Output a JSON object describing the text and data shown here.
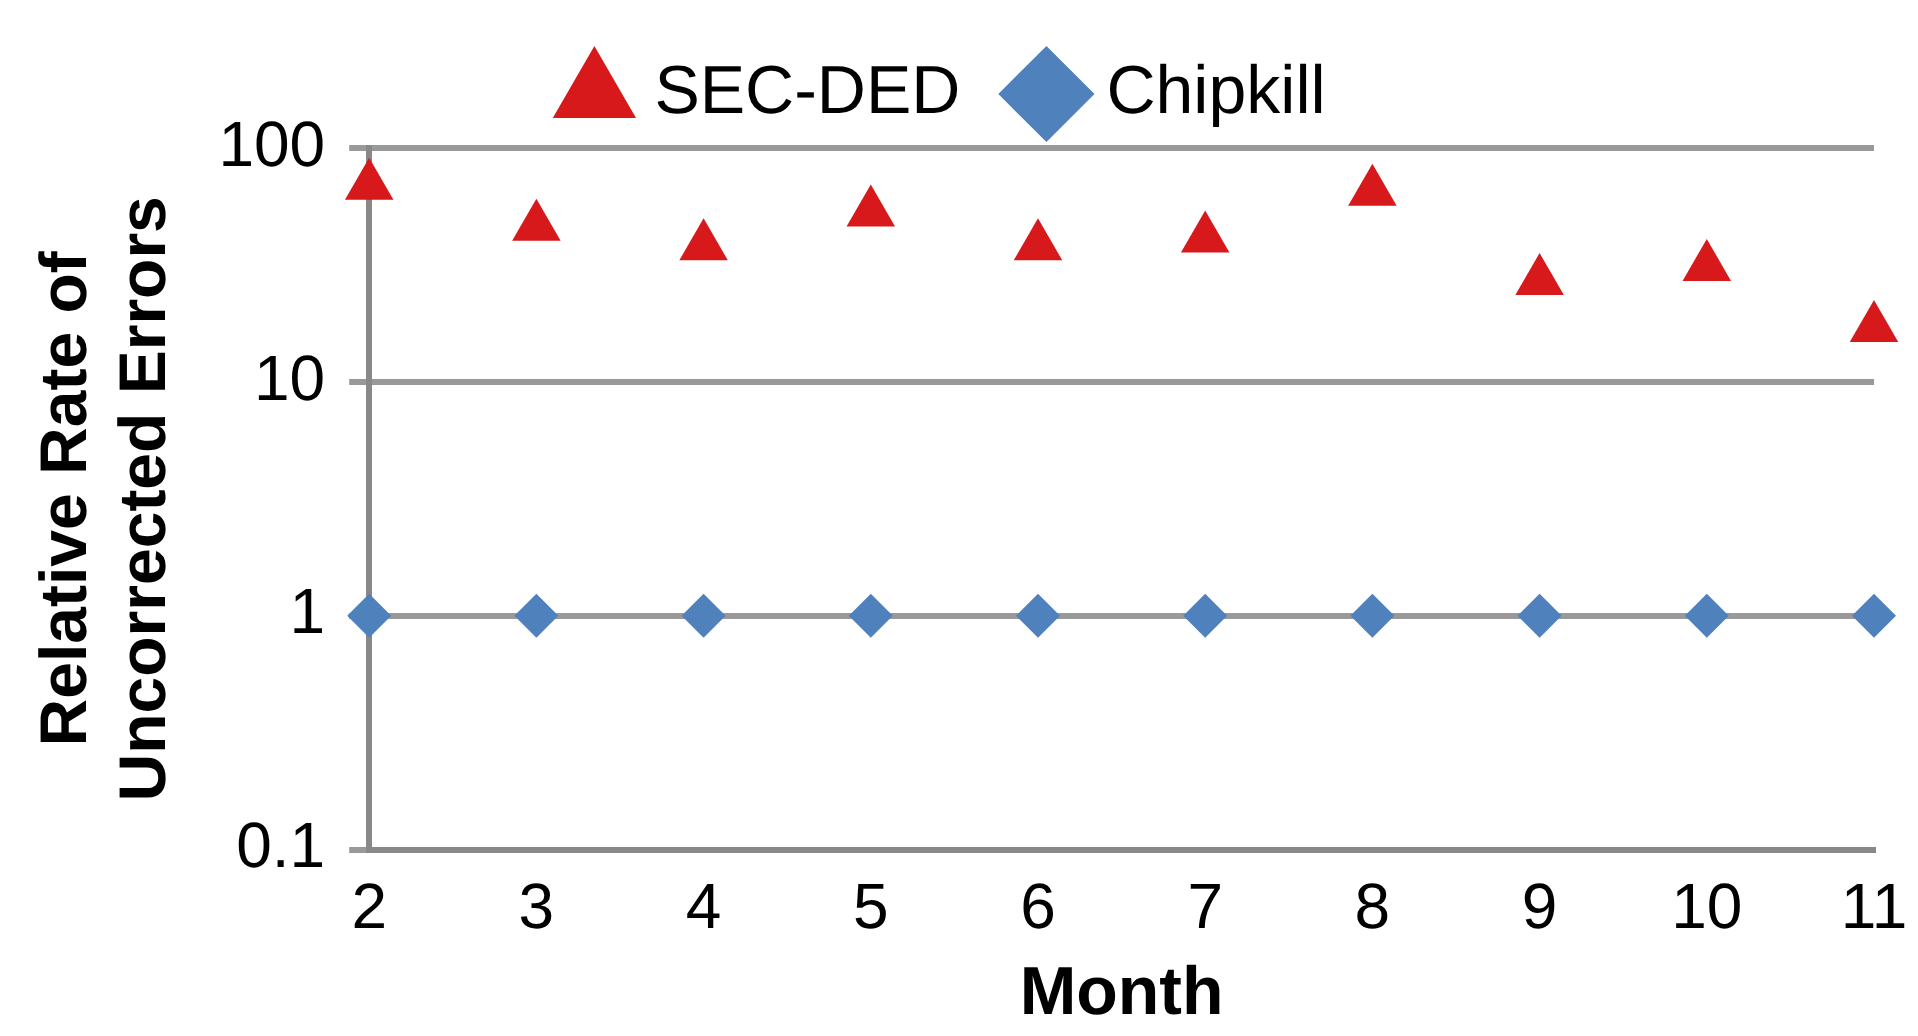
{
  "chart_data": {
    "type": "scatter",
    "xlabel": "Month",
    "ylabel": "Relative Rate of Uncorrected Errors",
    "x": [
      2,
      3,
      4,
      5,
      6,
      7,
      8,
      9,
      10,
      11
    ],
    "series": [
      {
        "name": "SEC-DED",
        "color": "#d7191c",
        "marker": "triangle",
        "values": [
          69,
          46,
          38,
          53,
          38,
          41,
          65,
          27,
          31,
          17
        ]
      },
      {
        "name": "Chipkill",
        "color": "#4f81bd",
        "marker": "diamond",
        "values": [
          1,
          1,
          1,
          1,
          1,
          1,
          1,
          1,
          1,
          1
        ]
      }
    ],
    "log": "y",
    "xlim": [
      2,
      11
    ],
    "xticks": [
      2,
      3,
      4,
      5,
      6,
      7,
      8,
      9,
      10,
      11
    ],
    "ylim": [
      0.1,
      100
    ],
    "yticks": [
      0.1,
      1,
      10,
      100
    ],
    "grid": "y",
    "legend": "top"
  }
}
